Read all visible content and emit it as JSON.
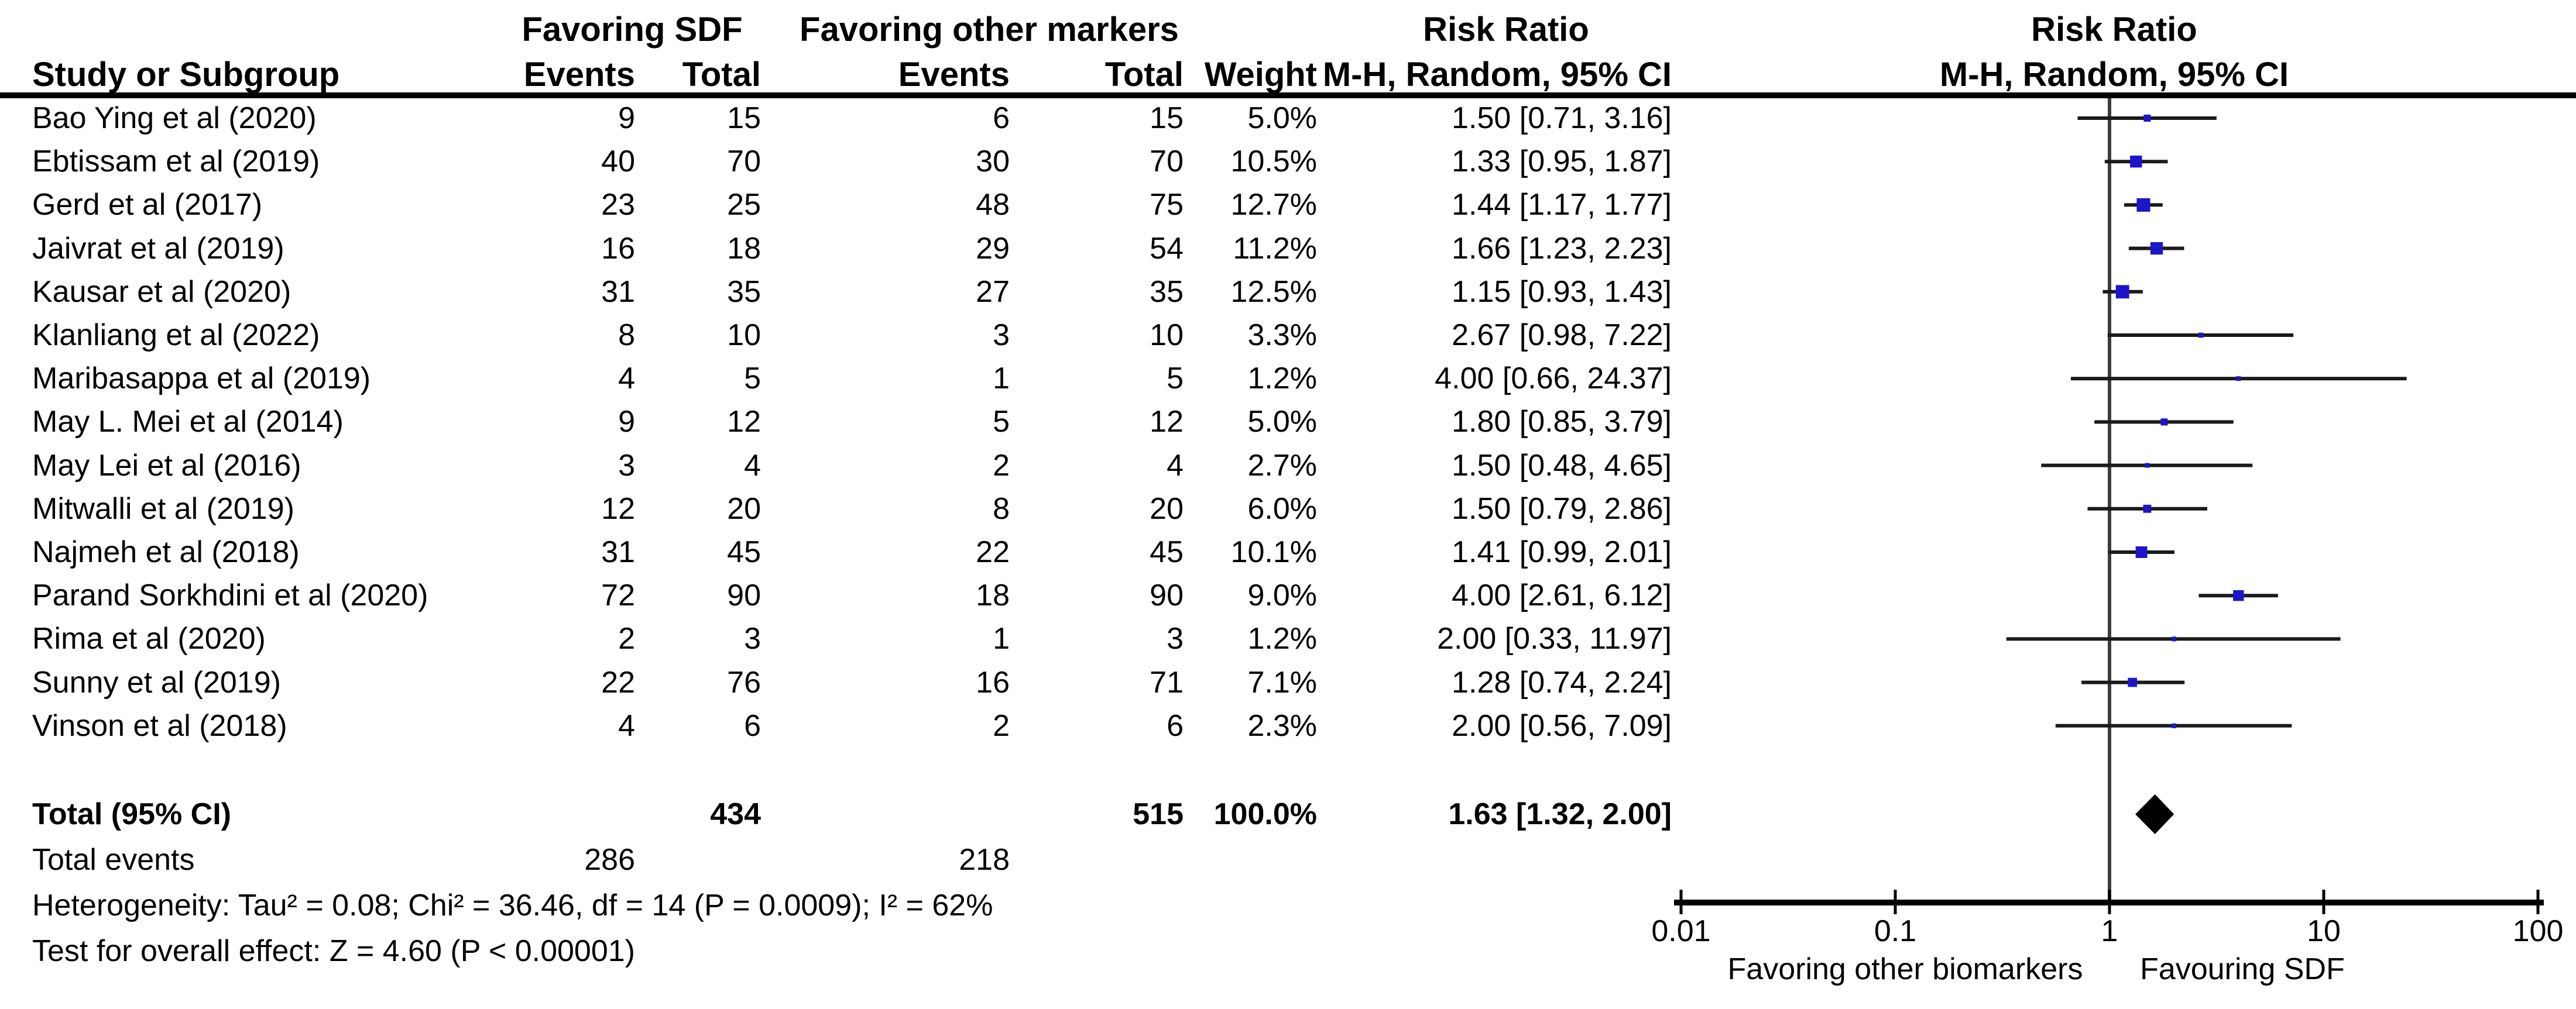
{
  "header": {
    "col_group1": "Favoring SDF",
    "col_group2": "Favoring other markers",
    "col_risk_ratio": "Risk Ratio",
    "plot_risk_ratio": "Risk Ratio",
    "col_study": "Study or Subgroup",
    "col_events1": "Events",
    "col_total1": "Total",
    "col_events2": "Events",
    "col_total2": "Total",
    "col_weight": "Weight",
    "col_method": "M-H, Random, 95% CI",
    "plot_method": "M-H, Random, 95% CI"
  },
  "colors": {
    "marker_blue": "#1d16c9",
    "diamond_black": "#000000",
    "ci_line": "#1a1a1a",
    "axis_line": "#000000",
    "no_effect_line": "#3d3d3d",
    "text": "#000000"
  },
  "chart_data": {
    "type": "forest",
    "effect_measure": "Risk Ratio",
    "model": "M-H, Random, 95% CI",
    "x_scale": "log10",
    "x_tick_values": [
      0.01,
      0.1,
      1,
      10,
      100
    ],
    "x_tick_labels": [
      "0.01",
      "0.1",
      "1",
      "10",
      "100"
    ],
    "axis_left_label": "Favoring other biomarkers",
    "axis_right_label": "Favouring SDF",
    "no_effect_value": 1,
    "studies": [
      {
        "name": "Bao Ying et al (2020)",
        "events1": "9",
        "total1": "15",
        "events2": "6",
        "total2": "15",
        "weight": "5.0%",
        "weight_value": 5.0,
        "ci_text": "1.50 [0.71, 3.16]",
        "rr": 1.5,
        "lo": 0.71,
        "hi": 3.16
      },
      {
        "name": "Ebtissam et al (2019)",
        "events1": "40",
        "total1": "70",
        "events2": "30",
        "total2": "70",
        "weight": "10.5%",
        "weight_value": 10.5,
        "ci_text": "1.33 [0.95, 1.87]",
        "rr": 1.33,
        "lo": 0.95,
        "hi": 1.87
      },
      {
        "name": "Gerd et al (2017)",
        "events1": "23",
        "total1": "25",
        "events2": "48",
        "total2": "75",
        "weight": "12.7%",
        "weight_value": 12.7,
        "ci_text": "1.44 [1.17, 1.77]",
        "rr": 1.44,
        "lo": 1.17,
        "hi": 1.77
      },
      {
        "name": "Jaivrat et al (2019)",
        "events1": "16",
        "total1": "18",
        "events2": "29",
        "total2": "54",
        "weight": "11.2%",
        "weight_value": 11.2,
        "ci_text": "1.66 [1.23, 2.23]",
        "rr": 1.66,
        "lo": 1.23,
        "hi": 2.23
      },
      {
        "name": "Kausar et al (2020)",
        "events1": "31",
        "total1": "35",
        "events2": "27",
        "total2": "35",
        "weight": "12.5%",
        "weight_value": 12.5,
        "ci_text": "1.15 [0.93, 1.43]",
        "rr": 1.15,
        "lo": 0.93,
        "hi": 1.43
      },
      {
        "name": "Klanliang et al (2022)",
        "events1": "8",
        "total1": "10",
        "events2": "3",
        "total2": "10",
        "weight": "3.3%",
        "weight_value": 3.3,
        "ci_text": "2.67 [0.98, 7.22]",
        "rr": 2.67,
        "lo": 0.98,
        "hi": 7.22
      },
      {
        "name": "Maribasappa et al (2019)",
        "events1": "4",
        "total1": "5",
        "events2": "1",
        "total2": "5",
        "weight": "1.2%",
        "weight_value": 1.2,
        "ci_text": "4.00 [0.66, 24.37]",
        "rr": 4.0,
        "lo": 0.66,
        "hi": 24.37
      },
      {
        "name": "May L. Mei et al (2014)",
        "events1": "9",
        "total1": "12",
        "events2": "5",
        "total2": "12",
        "weight": "5.0%",
        "weight_value": 5.0,
        "ci_text": "1.80 [0.85, 3.79]",
        "rr": 1.8,
        "lo": 0.85,
        "hi": 3.79
      },
      {
        "name": "May Lei et al (2016)",
        "events1": "3",
        "total1": "4",
        "events2": "2",
        "total2": "4",
        "weight": "2.7%",
        "weight_value": 2.7,
        "ci_text": "1.50 [0.48, 4.65]",
        "rr": 1.5,
        "lo": 0.48,
        "hi": 4.65
      },
      {
        "name": "Mitwalli et al (2019)",
        "events1": "12",
        "total1": "20",
        "events2": "8",
        "total2": "20",
        "weight": "6.0%",
        "weight_value": 6.0,
        "ci_text": "1.50 [0.79, 2.86]",
        "rr": 1.5,
        "lo": 0.79,
        "hi": 2.86
      },
      {
        "name": "Najmeh et al (2018)",
        "events1": "31",
        "total1": "45",
        "events2": "22",
        "total2": "45",
        "weight": "10.1%",
        "weight_value": 10.1,
        "ci_text": "1.41 [0.99, 2.01]",
        "rr": 1.41,
        "lo": 0.99,
        "hi": 2.01
      },
      {
        "name": "Parand Sorkhdini et al (2020)",
        "events1": "72",
        "total1": "90",
        "events2": "18",
        "total2": "90",
        "weight": "9.0%",
        "weight_value": 9.0,
        "ci_text": "4.00 [2.61, 6.12]",
        "rr": 4.0,
        "lo": 2.61,
        "hi": 6.12
      },
      {
        "name": "Rima et al (2020)",
        "events1": "2",
        "total1": "3",
        "events2": "1",
        "total2": "3",
        "weight": "1.2%",
        "weight_value": 1.2,
        "ci_text": "2.00 [0.33, 11.97]",
        "rr": 2.0,
        "lo": 0.33,
        "hi": 11.97
      },
      {
        "name": "Sunny et al (2019)",
        "events1": "22",
        "total1": "76",
        "events2": "16",
        "total2": "71",
        "weight": "7.1%",
        "weight_value": 7.1,
        "ci_text": "1.28 [0.74, 2.24]",
        "rr": 1.28,
        "lo": 0.74,
        "hi": 2.24
      },
      {
        "name": "Vinson et al (2018)",
        "events1": "4",
        "total1": "6",
        "events2": "2",
        "total2": "6",
        "weight": "2.3%",
        "weight_value": 2.3,
        "ci_text": "2.00 [0.56, 7.09]",
        "rr": 2.0,
        "lo": 0.56,
        "hi": 7.09
      }
    ],
    "total": {
      "label": "Total (95% CI)",
      "total1": "434",
      "total2": "515",
      "weight": "100.0%",
      "ci_text": "1.63 [1.32, 2.00]",
      "rr": 1.63,
      "lo": 1.32,
      "hi": 2.0
    },
    "total_events": {
      "label": "Total events",
      "events1": "286",
      "events2": "218"
    },
    "heterogeneity": "Heterogeneity: Tau² = 0.08; Chi² = 36.46, df = 14 (P = 0.0009); I² = 62%",
    "overall_effect": "Test for overall effect: Z = 4.60 (P < 0.00001)"
  }
}
